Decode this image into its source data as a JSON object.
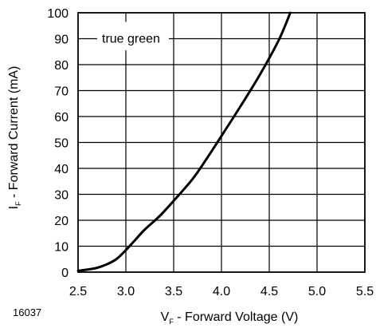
{
  "figure_id": "16037",
  "chart_data": {
    "type": "line",
    "annotation": "true green",
    "xlabel": {
      "main": "V",
      "sub": "F",
      "rest": " - Forward Voltage (V)"
    },
    "ylabel": {
      "main": "I",
      "sub": "F",
      "rest": " - Forward Current (mA)"
    },
    "xlim": [
      2.5,
      5.5
    ],
    "ylim": [
      0,
      100
    ],
    "x_ticks": [
      2.5,
      3.0,
      3.5,
      4.0,
      4.5,
      5.0,
      5.5
    ],
    "x_tick_labels": [
      "2.5",
      "3.0",
      "3.5",
      "4.0",
      "4.5",
      "5.0",
      "5.5"
    ],
    "y_ticks": [
      0,
      10,
      20,
      30,
      40,
      50,
      60,
      70,
      80,
      90,
      100
    ],
    "y_tick_labels": [
      "0",
      "10",
      "20",
      "30",
      "40",
      "50",
      "60",
      "70",
      "80",
      "90",
      "100"
    ],
    "grid": true,
    "series": [
      {
        "x": [
          2.5,
          2.68,
          2.8,
          2.9,
          3.0,
          3.1,
          3.2,
          3.35,
          3.5,
          3.7,
          3.85,
          4.0,
          4.2,
          4.4,
          4.6,
          4.72
        ],
        "y": [
          0.5,
          1.5,
          3.0,
          5.0,
          8.5,
          12.5,
          16.5,
          21.5,
          27.5,
          36.0,
          44.0,
          52.5,
          64.0,
          76.0,
          89.5,
          100
        ]
      }
    ]
  }
}
